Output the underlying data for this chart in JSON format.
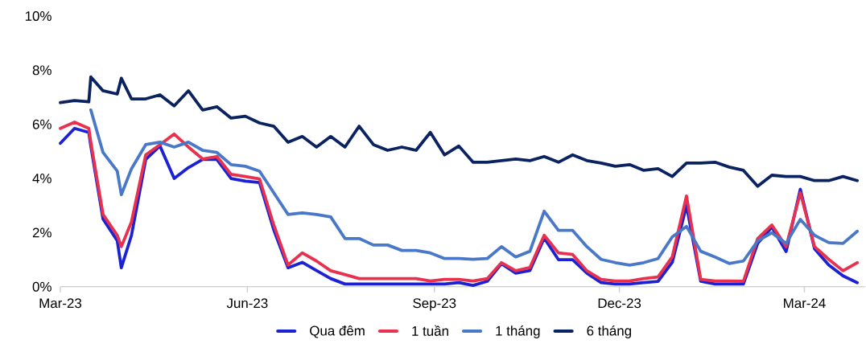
{
  "chart_data": {
    "type": "line",
    "x": [
      "2023-03-01",
      "2023-03-08",
      "2023-03-15",
      "2023-03-16",
      "2023-03-22",
      "2023-03-29",
      "2023-03-31",
      "2023-04-05",
      "2023-04-12",
      "2023-04-19",
      "2023-04-26",
      "2023-05-03",
      "2023-05-10",
      "2023-05-17",
      "2023-05-24",
      "2023-05-31",
      "2023-06-07",
      "2023-06-14",
      "2023-06-21",
      "2023-06-28",
      "2023-07-05",
      "2023-07-12",
      "2023-07-19",
      "2023-07-26",
      "2023-08-02",
      "2023-08-09",
      "2023-08-16",
      "2023-08-23",
      "2023-08-30",
      "2023-09-06",
      "2023-09-13",
      "2023-09-20",
      "2023-09-27",
      "2023-10-04",
      "2023-10-11",
      "2023-10-18",
      "2023-10-25",
      "2023-11-01",
      "2023-11-08",
      "2023-11-15",
      "2023-11-22",
      "2023-11-29",
      "2023-12-06",
      "2023-12-13",
      "2023-12-20",
      "2023-12-27",
      "2024-01-03",
      "2024-01-10",
      "2024-01-17",
      "2024-01-24",
      "2024-01-31",
      "2024-02-07",
      "2024-02-14",
      "2024-02-21",
      "2024-02-28",
      "2024-03-06",
      "2024-03-13",
      "2024-03-20",
      "2024-03-27"
    ],
    "series": [
      {
        "name": "Qua đêm",
        "color": "#1c22d4",
        "values": [
          5.3,
          5.85,
          5.7,
          5.2,
          2.5,
          1.7,
          0.7,
          1.9,
          4.7,
          5.2,
          4.0,
          4.4,
          4.7,
          4.7,
          4.0,
          3.9,
          3.85,
          2.1,
          0.7,
          0.9,
          0.6,
          0.3,
          0.1,
          0.1,
          0.1,
          0.1,
          0.1,
          0.1,
          0.1,
          0.1,
          0.15,
          0.05,
          0.2,
          0.85,
          0.5,
          0.6,
          1.8,
          1.0,
          1.0,
          0.5,
          0.15,
          0.1,
          0.1,
          0.15,
          0.2,
          0.9,
          3.0,
          0.2,
          0.1,
          0.1,
          0.1,
          1.6,
          2.2,
          1.3,
          3.6,
          1.4,
          0.8,
          0.4,
          0.15
        ]
      },
      {
        "name": "1 tuần",
        "color": "#e8304f",
        "values": [
          5.85,
          6.08,
          5.85,
          5.34,
          2.67,
          1.9,
          1.48,
          2.4,
          4.87,
          5.25,
          5.64,
          5.16,
          4.72,
          4.81,
          4.15,
          4.07,
          3.98,
          2.28,
          0.8,
          1.25,
          0.95,
          0.59,
          0.45,
          0.3,
          0.3,
          0.3,
          0.3,
          0.3,
          0.21,
          0.27,
          0.27,
          0.21,
          0.3,
          0.89,
          0.59,
          0.71,
          1.9,
          1.25,
          1.19,
          0.59,
          0.27,
          0.21,
          0.21,
          0.3,
          0.36,
          1.1,
          3.35,
          0.27,
          0.21,
          0.21,
          0.2,
          1.78,
          2.28,
          1.48,
          3.47,
          1.48,
          1.01,
          0.59,
          0.89
        ]
      },
      {
        "name": "1 tháng",
        "color": "#4a78c8",
        "values": [
          null,
          null,
          null,
          6.53,
          4.96,
          4.27,
          3.4,
          4.36,
          5.25,
          5.34,
          5.16,
          5.34,
          5.04,
          4.96,
          4.51,
          4.45,
          4.27,
          3.47,
          2.67,
          2.73,
          2.67,
          2.58,
          1.78,
          1.78,
          1.54,
          1.54,
          1.34,
          1.34,
          1.25,
          1.04,
          1.04,
          1.01,
          1.04,
          1.48,
          1.1,
          1.31,
          2.79,
          2.08,
          2.08,
          1.48,
          1.01,
          0.89,
          0.8,
          0.89,
          1.04,
          1.84,
          2.23,
          1.31,
          1.1,
          0.86,
          0.95,
          1.69,
          1.99,
          1.6,
          2.49,
          1.9,
          1.63,
          1.6,
          2.05
        ]
      },
      {
        "name": "6 tháng",
        "color": "#0b2260",
        "values": [
          6.8,
          6.88,
          6.83,
          7.75,
          7.24,
          7.12,
          7.7,
          6.94,
          6.94,
          7.09,
          6.68,
          7.24,
          6.53,
          6.65,
          6.23,
          6.3,
          6.05,
          5.93,
          5.34,
          5.55,
          5.16,
          5.55,
          5.16,
          5.93,
          5.25,
          5.04,
          5.16,
          5.04,
          5.7,
          4.87,
          5.2,
          4.6,
          4.6,
          4.66,
          4.72,
          4.66,
          4.81,
          4.6,
          4.87,
          4.66,
          4.57,
          4.45,
          4.51,
          4.3,
          4.36,
          4.07,
          4.57,
          4.57,
          4.6,
          4.42,
          4.3,
          3.71,
          4.12,
          4.07,
          4.07,
          3.92,
          3.92,
          4.07,
          3.92
        ]
      }
    ],
    "xlim": [
      "2023-03-01",
      "2024-03-31"
    ],
    "ylim": [
      0,
      10
    ],
    "xticks": [
      {
        "value": "2023-03-01",
        "label": "Mar-23"
      },
      {
        "value": "2023-06-01",
        "label": "Jun-23"
      },
      {
        "value": "2023-09-01",
        "label": "Sep-23"
      },
      {
        "value": "2023-12-01",
        "label": "Dec-23"
      },
      {
        "value": "2024-03-01",
        "label": "Mar-24"
      }
    ],
    "yticks": [
      {
        "value": 0,
        "label": "0%"
      },
      {
        "value": 2,
        "label": "2%"
      },
      {
        "value": 4,
        "label": "4%"
      },
      {
        "value": 6,
        "label": "6%"
      },
      {
        "value": 8,
        "label": "8%"
      },
      {
        "value": 10,
        "label": "10%"
      }
    ],
    "legend": "bottom"
  }
}
